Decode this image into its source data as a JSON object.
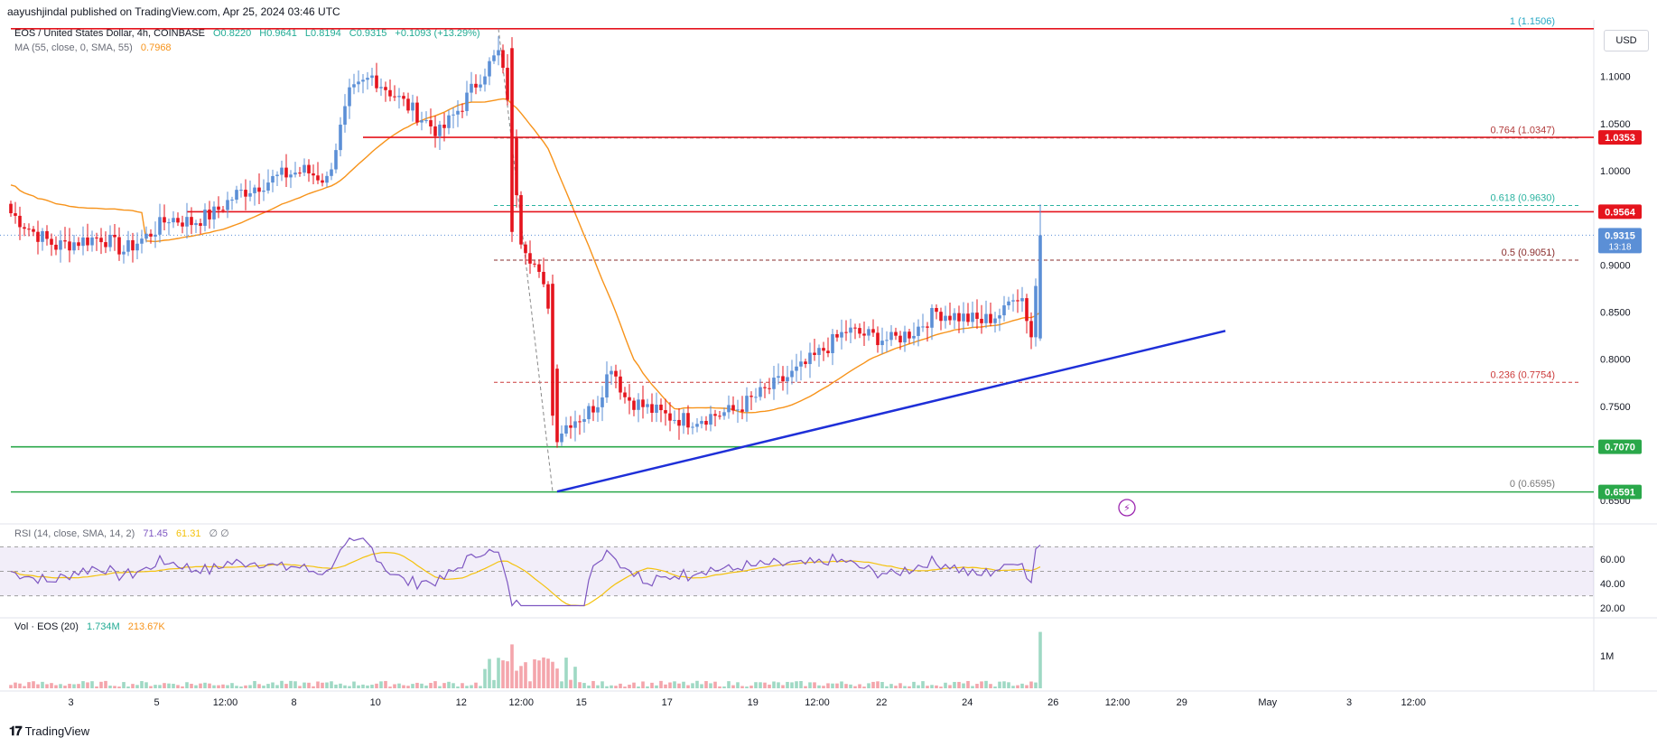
{
  "header": {
    "published": "aayushjindal published on TradingView.com, Apr 25, 2024 03:46 UTC"
  },
  "legend": {
    "symbol": "EOS / United States Dollar, 4h, COINBASE",
    "open": "O0.8220",
    "high": "H0.9641",
    "low": "L0.8194",
    "close": "C0.9315",
    "change": "+0.1093 (+13.29%)",
    "ma_label": "MA (55, close, 0, SMA, 55)",
    "ma_value": "0.7968",
    "rsi_label": "RSI (14, close, SMA, 14, 2)",
    "rsi_value": "71.45",
    "rsi_ma_value": "61.31",
    "rsi_extra": "∅ ∅",
    "vol_label": "Vol · EOS (20)",
    "vol_value": "1.734M",
    "vol_ma_value": "213.67K"
  },
  "currency": "USD",
  "brand": "TradingView",
  "colors": {
    "up": "#5b8fd6",
    "down": "#e5141d",
    "ma": "#f7931a",
    "resistance": "#e5141d",
    "support": "#2aa84a",
    "trendline": "#1e2fd8",
    "rsi": "#7e57c2",
    "rsi_ma": "#f4c20d",
    "vol_up": "#9fd9c4",
    "vol_down": "#f4a5ab"
  },
  "chart_data": {
    "type": "candlestick",
    "price_axis": {
      "min": 0.63,
      "max": 1.16,
      "ticks": [
        "1.1000",
        "1.0500",
        "1.0000",
        "0.9000",
        "0.8500",
        "0.8000",
        "0.7500",
        "0.6500"
      ]
    },
    "x_axis": {
      "count": 175,
      "ticks": [
        {
          "i": 14,
          "label": "3"
        },
        {
          "i": 34,
          "label": "5"
        },
        {
          "i": 50,
          "label": "12:00"
        },
        {
          "i": 66,
          "label": "8"
        },
        {
          "i": 85,
          "label": "10"
        },
        {
          "i": 105,
          "label": "12"
        },
        {
          "i": 119,
          "label": "12:00"
        },
        {
          "i": 133,
          "label": "15"
        },
        {
          "i": 153,
          "label": "17"
        },
        {
          "i": 173,
          "label": "19"
        },
        {
          "i": 188,
          "label": "12:00"
        },
        {
          "i": 203,
          "label": "22"
        },
        {
          "i": 223,
          "label": "24"
        },
        {
          "i": 243,
          "label": "26"
        },
        {
          "i": 258,
          "label": "12:00"
        },
        {
          "i": 273,
          "label": "29"
        },
        {
          "i": 293,
          "label": "May"
        },
        {
          "i": 312,
          "label": "3"
        },
        {
          "i": 327,
          "label": "12:00"
        }
      ]
    },
    "badges": [
      {
        "value": "1.0353",
        "price": 1.0353,
        "color": "#e5141d"
      },
      {
        "value": "0.9564",
        "price": 0.9564,
        "color": "#e5141d"
      },
      {
        "value": "0.9315",
        "price": 0.9315,
        "color": "#5b8fd6",
        "sub": "13:18"
      },
      {
        "value": "0.7070",
        "price": 0.707,
        "color": "#2aa84a"
      },
      {
        "value": "0.6591",
        "price": 0.6591,
        "color": "#2aa84a"
      }
    ],
    "horizontal_levels": [
      {
        "price": 1.1506,
        "color": "#e5141d",
        "from_i": 0
      },
      {
        "price": 1.0353,
        "color": "#e5141d",
        "from_i": 78
      },
      {
        "price": 0.9564,
        "color": "#e5141d",
        "from_i": 39
      },
      {
        "price": 0.707,
        "color": "#2aa84a",
        "from_i": 0
      },
      {
        "price": 0.6591,
        "color": "#2aa84a",
        "from_i": 0
      }
    ],
    "fib_levels": [
      {
        "label": "1 (1.1506)",
        "price": 1.1506,
        "color": "#26a7c4"
      },
      {
        "label": "0.764 (1.0347)",
        "price": 1.0347,
        "color": "#b23a3a"
      },
      {
        "label": "0.618 (0.9630)",
        "price": 0.963,
        "color": "#2ab3a0"
      },
      {
        "label": "0.5 (0.9051)",
        "price": 0.9051,
        "color": "#8a2c2c"
      },
      {
        "label": "0.236 (0.7754)",
        "price": 0.7754,
        "color": "#cc3b3b"
      },
      {
        "label": "0 (0.6595)",
        "price": 0.6595,
        "color": "#777777"
      }
    ],
    "fib_from_i": 107,
    "trendline": {
      "i1": 121,
      "p1": 0.6595,
      "i2": 269,
      "p2": 0.83
    },
    "fib_diagonal": {
      "i1": 108,
      "p1": 1.1506,
      "i2": 120,
      "p2": 0.6595
    },
    "last_price": 0.9315,
    "rsi_axis": {
      "min": 15,
      "max": 85,
      "ticks": [
        "60.00",
        "40.00",
        "20.00"
      ],
      "upper": 70,
      "mid": 50,
      "lower": 30
    },
    "vol_axis": {
      "max": 2.0,
      "tick": "1M",
      "tick_value": 1.0
    }
  }
}
